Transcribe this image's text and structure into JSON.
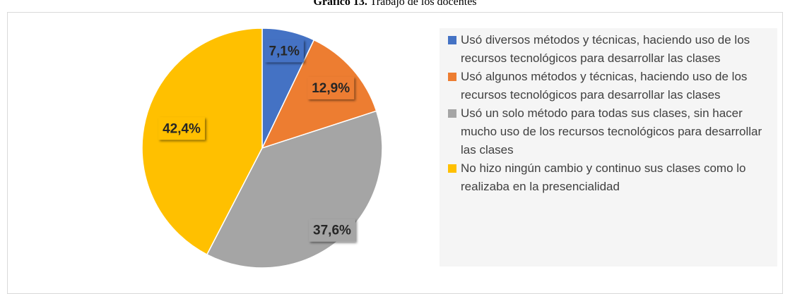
{
  "chart_data": {
    "type": "pie",
    "title_label": "Gráfico 13.",
    "title": "Trabajo de los docentes",
    "categories": [
      "Usó diversos métodos y técnicas, haciendo uso de los recursos tecnológicos para desarrollar las clases",
      "Usó algunos métodos y técnicas, haciendo uso de los recursos tecnológicos para desarrollar las clases",
      "Usó un solo método para todas sus clases, sin hacer mucho uso de los recursos tecnológicos para desarrollar las clases",
      "No hizo ningún cambio y continuo sus clases como lo realizaba en la presencialidad"
    ],
    "values": [
      7.1,
      12.9,
      37.6,
      42.4
    ],
    "value_labels": [
      "7,1%",
      "12,9%",
      "37,6%",
      "42,4%"
    ],
    "colors": [
      "#4472c4",
      "#ed7d31",
      "#a5a5a5",
      "#ffc000"
    ],
    "legend": "right"
  }
}
